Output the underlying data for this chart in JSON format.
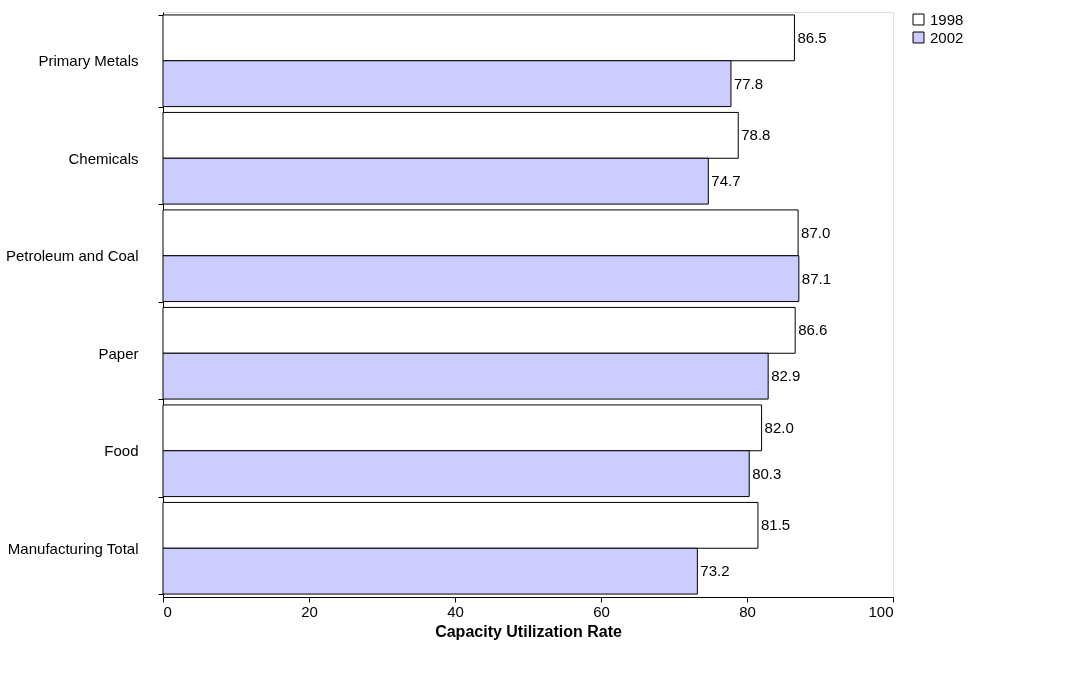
{
  "chart_data": {
    "type": "bar",
    "orientation": "horizontal",
    "xlabel": "Capacity Utilization Rate",
    "categories": [
      "Primary Metals",
      "Chemicals",
      "Petroleum and Coal",
      "Paper",
      "Food",
      "Manufacturing Total"
    ],
    "series": [
      {
        "name": "1998",
        "color": "#ffffff",
        "values": [
          86.5,
          78.8,
          87.0,
          86.6,
          82.0,
          81.5
        ],
        "value_labels": [
          "86.5",
          "78.8",
          "87.0",
          "86.6",
          "82.0",
          "81.5"
        ]
      },
      {
        "name": "2002",
        "color": "#ccccff",
        "values": [
          77.8,
          74.7,
          87.1,
          82.9,
          80.3,
          73.2
        ],
        "value_labels": [
          "77.8",
          "74.7",
          "87.1",
          "82.9",
          "80.3",
          "73.2"
        ]
      }
    ],
    "xlim": [
      0,
      100
    ],
    "xticks": [
      0,
      20,
      40,
      60,
      80,
      100
    ],
    "grid": false,
    "legend": "right"
  }
}
